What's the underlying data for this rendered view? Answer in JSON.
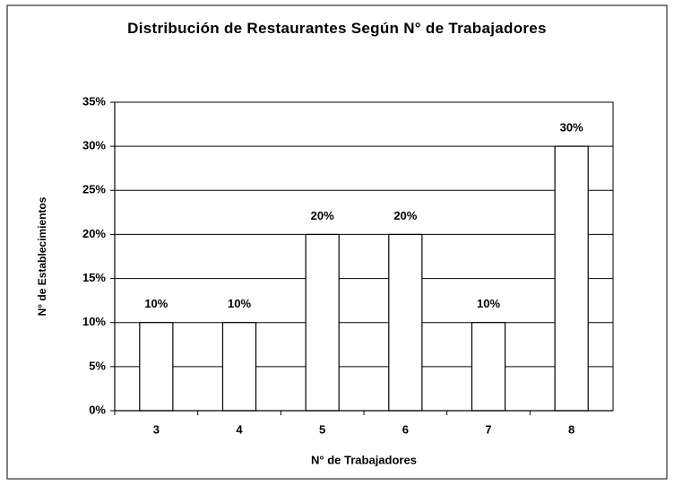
{
  "chart_data": {
    "type": "bar",
    "title": "Distribución de Restaurantes Según N° de Trabajadores",
    "x_label": "N° de Trabajadores",
    "y_label": "N° de Establecimientos",
    "categories": [
      "3",
      "4",
      "5",
      "6",
      "7",
      "8"
    ],
    "values": [
      10,
      10,
      20,
      20,
      10,
      30
    ],
    "value_labels": [
      "10%",
      "10%",
      "20%",
      "20%",
      "10%",
      "30%"
    ],
    "color": "#ffffff",
    "ylim": [
      0,
      35
    ],
    "yticks": [
      {
        "value": 0,
        "label": "0%"
      },
      {
        "value": 5,
        "label": "5%"
      },
      {
        "value": 10,
        "label": "10%"
      },
      {
        "value": 15,
        "label": "15%"
      },
      {
        "value": 20,
        "label": "20%"
      },
      {
        "value": 25,
        "label": "25%"
      },
      {
        "value": 30,
        "label": "30%"
      },
      {
        "value": 35,
        "label": "35%"
      }
    ],
    "grid": true
  }
}
